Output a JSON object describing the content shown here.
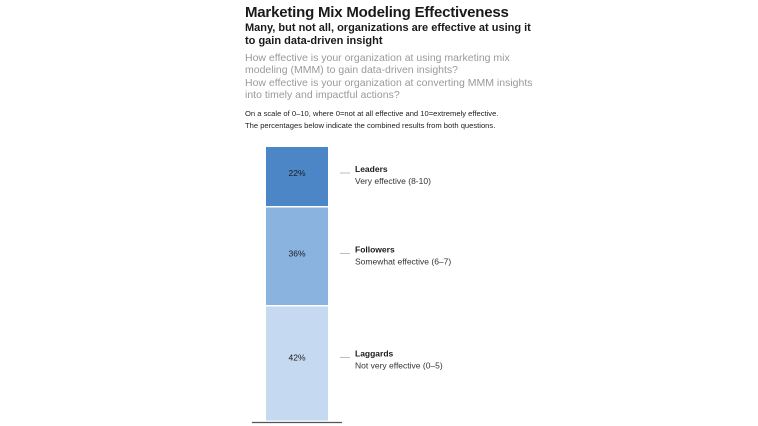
{
  "header": {
    "title": "Marketing Mix Modeling Effectiveness",
    "subtitle": "Many, but not all, organizations are effective at using it to gain data-driven insight",
    "question1": "How effective is your organization at using marketing mix modeling (MMM) to gain data-driven insights?",
    "question2": "How effective is your organization at converting MMM insights into timely and impactful actions?",
    "note1": "On a scale of 0–10, where 0=not at all effective and 10=extremely effective.",
    "note2": "The percentages below indicate the combined results from both questions."
  },
  "chart_data": {
    "type": "bar",
    "stacked": true,
    "categories": [
      "Leaders",
      "Followers",
      "Laggards"
    ],
    "descriptions": [
      "Very effective (8-10)",
      "Somewhat effective (6–7)",
      "Not very effective (0–5)"
    ],
    "values": [
      22,
      36,
      42
    ],
    "value_labels": [
      "22%",
      "36%",
      "42%"
    ],
    "colors": [
      "#4d86c6",
      "#8ab3e0",
      "#c5d9f1"
    ],
    "ylim": [
      0,
      100
    ]
  }
}
